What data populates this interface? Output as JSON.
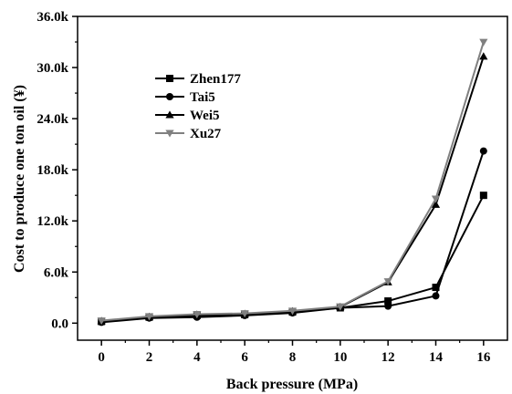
{
  "chart_data": {
    "type": "line",
    "xlabel": "Back pressure (MPa)",
    "ylabel": "Cost to produce one ton oil (¥)",
    "xlim": [
      -1,
      17
    ],
    "ylim": [
      -2000,
      36000
    ],
    "xticks": [
      0,
      2,
      4,
      6,
      8,
      10,
      12,
      14,
      16
    ],
    "yticks": [
      0,
      6000,
      12000,
      18000,
      24000,
      30000,
      36000
    ],
    "xtick_labels": [
      "0",
      "2",
      "4",
      "6",
      "8",
      "10",
      "12",
      "14",
      "16"
    ],
    "ytick_labels": [
      "0.0",
      "6.0k",
      "12.0k",
      "18.0k",
      "24.0k",
      "30.0k",
      "36.0k"
    ],
    "legend_position": "upper-left",
    "grid": false,
    "x": [
      0,
      2,
      4,
      6,
      8,
      10,
      12,
      14,
      16
    ],
    "series": [
      {
        "name": "Zhen177",
        "marker": "square",
        "color": "#000000",
        "values": [
          200,
          700,
          900,
          1000,
          1300,
          1800,
          2600,
          4200,
          15000
        ]
      },
      {
        "name": "Tai5",
        "marker": "circle",
        "color": "#000000",
        "values": [
          100,
          600,
          700,
          900,
          1200,
          1800,
          2000,
          3200,
          20200
        ]
      },
      {
        "name": "Wei5",
        "marker": "triangle-up",
        "color": "#000000",
        "values": [
          250,
          750,
          1000,
          1100,
          1400,
          1900,
          4800,
          13900,
          31300
        ]
      },
      {
        "name": "Xu27",
        "marker": "triangle-down",
        "color": "#808080",
        "values": [
          300,
          800,
          1050,
          1150,
          1450,
          1950,
          4900,
          14600,
          33000
        ]
      }
    ]
  }
}
